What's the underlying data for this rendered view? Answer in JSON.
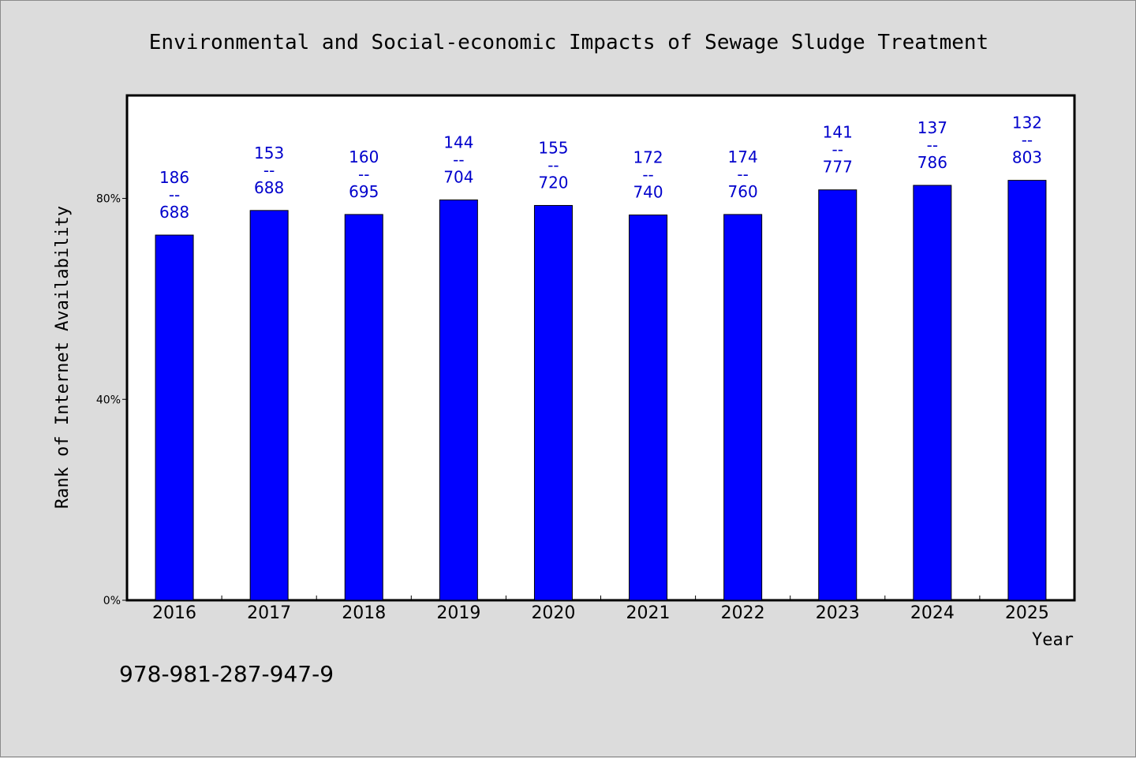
{
  "chart_data": {
    "type": "bar",
    "title": "Environmental and Social-economic Impacts of Sewage Sludge Treatment",
    "xlabel": "Year",
    "ylabel": "Rank of Internet Availability",
    "categories": [
      "2016",
      "2017",
      "2018",
      "2019",
      "2020",
      "2021",
      "2022",
      "2023",
      "2024",
      "2025"
    ],
    "values": [
      72.7,
      77.6,
      76.8,
      79.7,
      78.6,
      76.7,
      76.8,
      81.7,
      82.6,
      83.6
    ],
    "data_labels": [
      {
        "top": "186",
        "sep": "--",
        "bottom": "688"
      },
      {
        "top": "153",
        "sep": "--",
        "bottom": "688"
      },
      {
        "top": "160",
        "sep": "--",
        "bottom": "695"
      },
      {
        "top": "144",
        "sep": "--",
        "bottom": "704"
      },
      {
        "top": "155",
        "sep": "--",
        "bottom": "720"
      },
      {
        "top": "172",
        "sep": "--",
        "bottom": "740"
      },
      {
        "top": "174",
        "sep": "--",
        "bottom": "760"
      },
      {
        "top": "141",
        "sep": "--",
        "bottom": "777"
      },
      {
        "top": "137",
        "sep": "--",
        "bottom": "786"
      },
      {
        "top": "132",
        "sep": "--",
        "bottom": "803"
      }
    ],
    "yticks": [
      0,
      40,
      80
    ],
    "ytick_labels": [
      "0%",
      "40%",
      "80%"
    ],
    "ylim": [
      0,
      100.5
    ],
    "grid": false,
    "bar_color": "#0000ff",
    "label_color": "#0000cc"
  },
  "footer": {
    "isbn": "978-981-287-947-9"
  }
}
